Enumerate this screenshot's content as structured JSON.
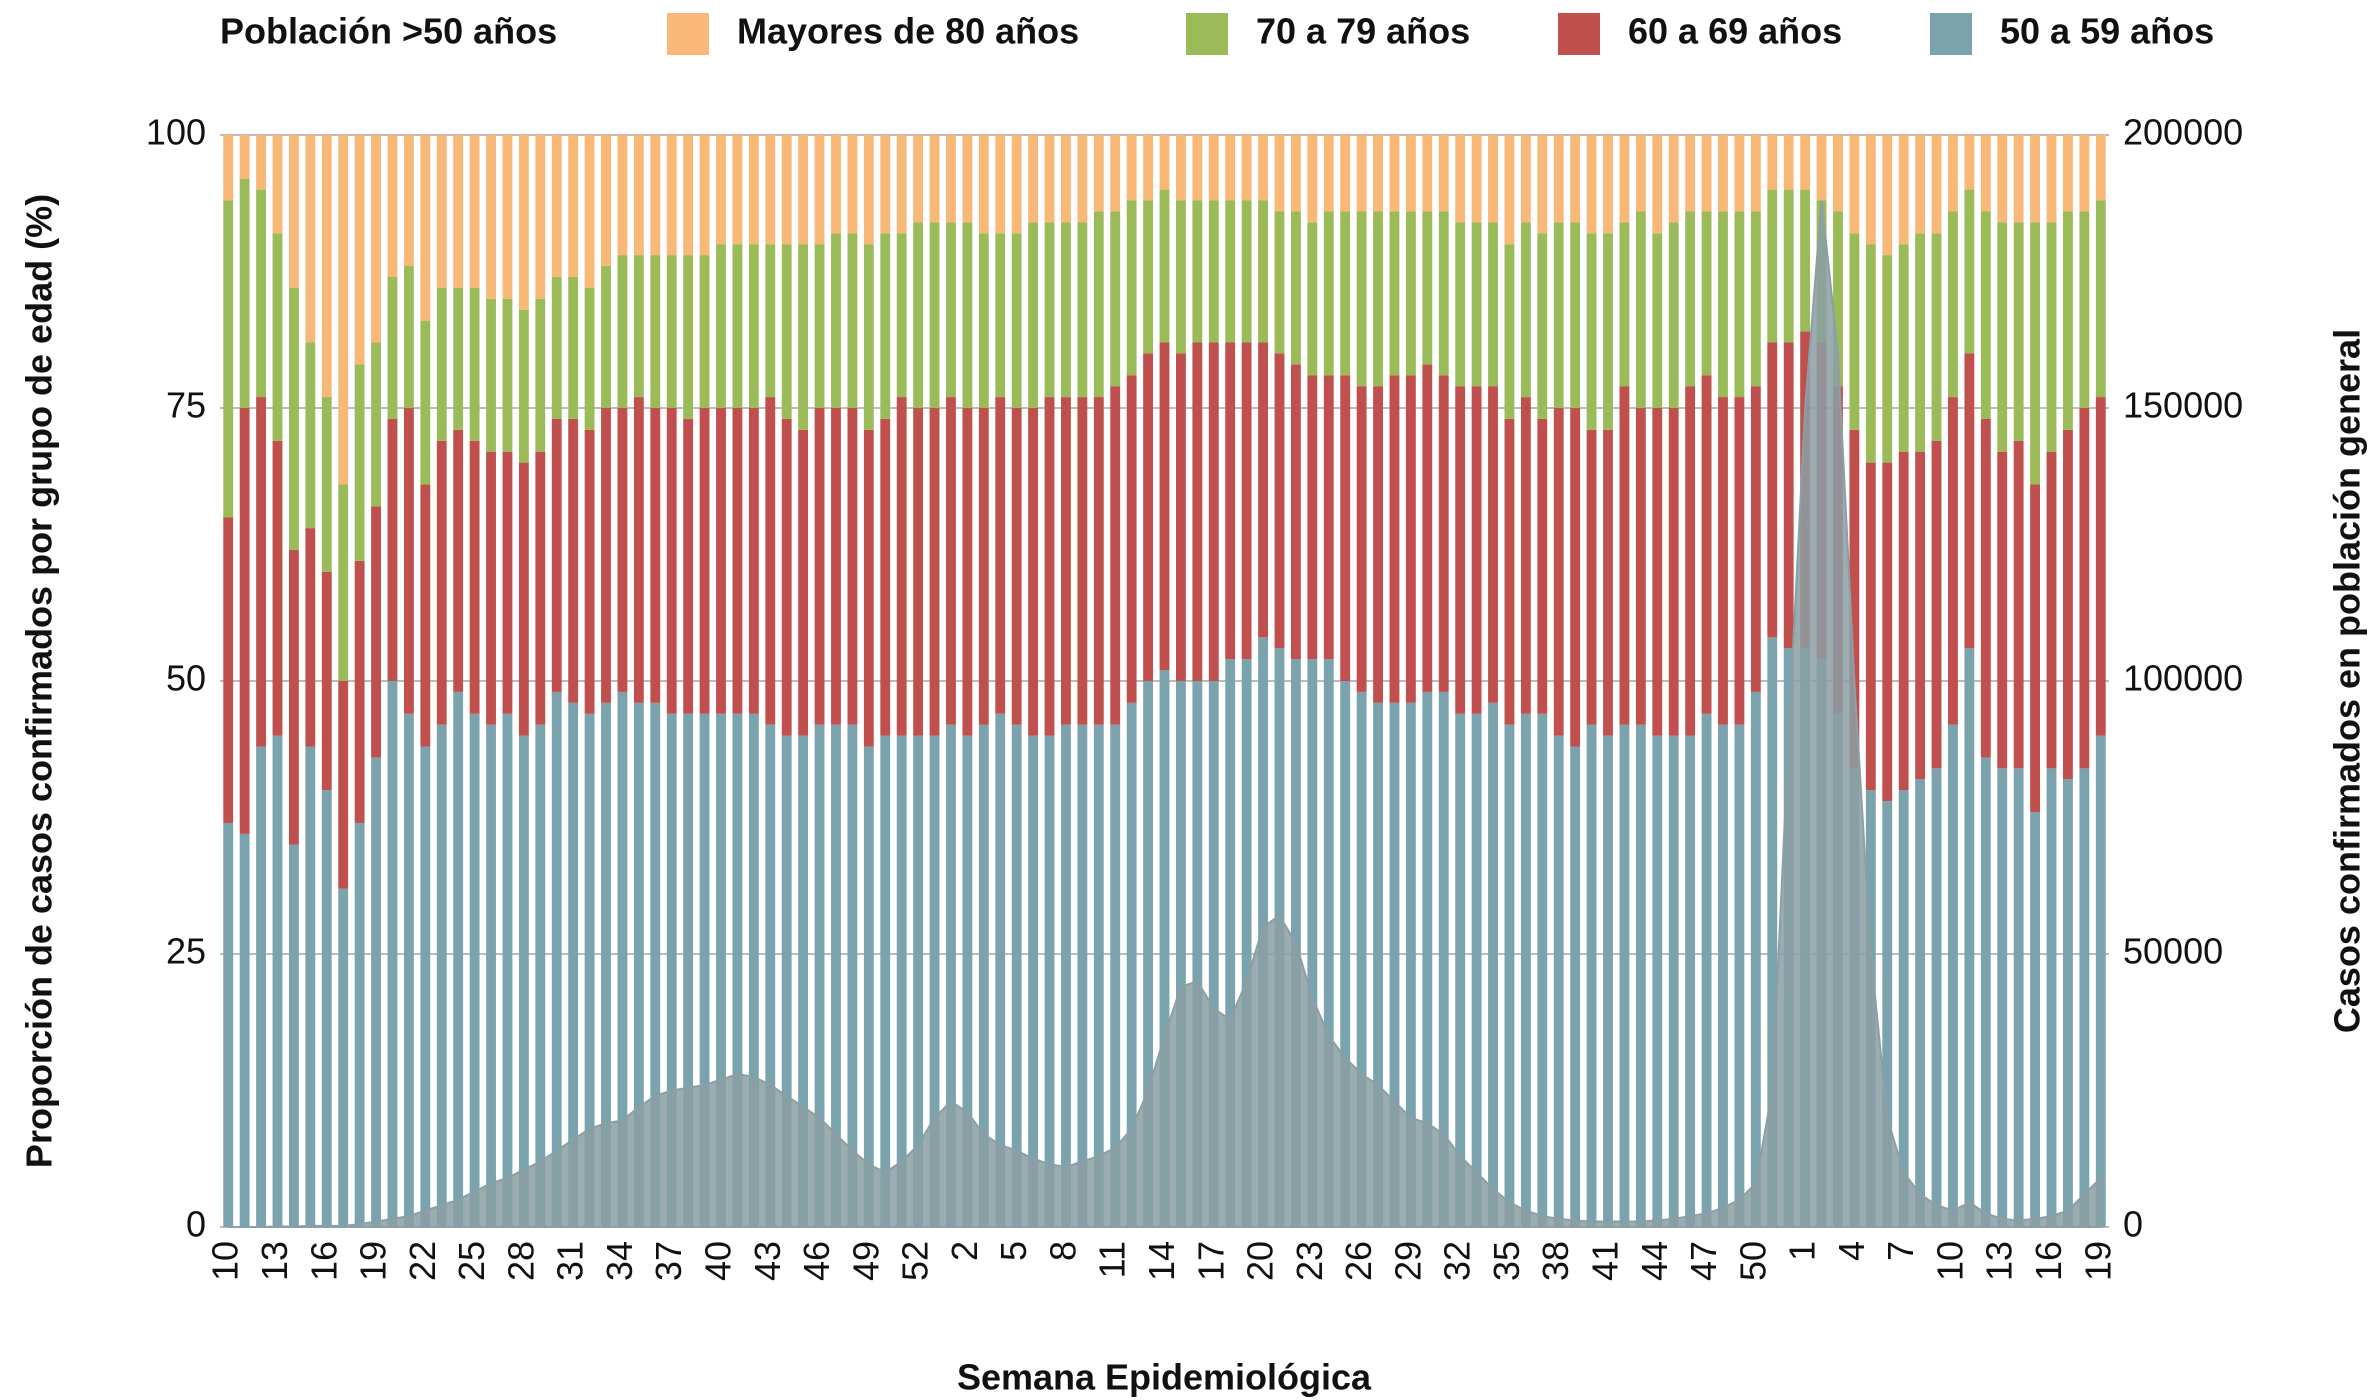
{
  "chart_data": {
    "type": "stacked_bar",
    "legend_title": "Población >50 años",
    "xlabel": "Semana Epidemiológica",
    "ylabel": "Proporción de casos confirmados por grupo de edad (%)",
    "y2label": "Casos confirmados en población general",
    "ylim": [
      0,
      100
    ],
    "yticks": [
      0,
      25,
      50,
      75,
      100
    ],
    "y2lim": [
      0,
      200000
    ],
    "y2ticks": [
      0,
      50000,
      100000,
      150000,
      200000
    ],
    "grid": true,
    "legend_position": "top",
    "categories": [
      "10",
      null,
      null,
      "13",
      null,
      null,
      "16",
      null,
      null,
      "19",
      null,
      null,
      "22",
      null,
      null,
      "25",
      null,
      null,
      "28",
      null,
      null,
      "31",
      null,
      null,
      "34",
      null,
      null,
      "37",
      null,
      null,
      "40",
      null,
      null,
      "43",
      null,
      null,
      "46",
      null,
      null,
      "49",
      null,
      null,
      "52",
      null,
      null,
      "2",
      null,
      null,
      "5",
      null,
      null,
      "8",
      null,
      null,
      "11",
      null,
      null,
      "14",
      null,
      null,
      "17",
      null,
      null,
      "20",
      null,
      null,
      "23",
      null,
      null,
      "26",
      null,
      null,
      "29",
      null,
      null,
      "32",
      null,
      null,
      "35",
      null,
      null,
      "38",
      null,
      null,
      "41",
      null,
      null,
      "44",
      null,
      null,
      "47",
      null,
      null,
      "50",
      null,
      null,
      "1",
      null,
      null,
      "4",
      null,
      null,
      "7",
      null,
      null,
      "10",
      null,
      null,
      "13",
      null,
      null,
      "16",
      null,
      null,
      "19"
    ],
    "series": [
      {
        "name": "50 a 59 años",
        "color": "#7ba3ad",
        "values": [
          37,
          36,
          44,
          45,
          35,
          44,
          40,
          31,
          37,
          43,
          50,
          47,
          44,
          46,
          49,
          47,
          46,
          47,
          45,
          46,
          49,
          48,
          47,
          48,
          49,
          48,
          48,
          47,
          47,
          47,
          47,
          47,
          47,
          46,
          45,
          45,
          46,
          46,
          46,
          44,
          45,
          45,
          45,
          45,
          46,
          45,
          46,
          47,
          46,
          45,
          45,
          46,
          46,
          46,
          46,
          48,
          50,
          51,
          50,
          50,
          50,
          52,
          52,
          54,
          53,
          52,
          52,
          52,
          50,
          49,
          48,
          48,
          48,
          49,
          49,
          47,
          47,
          48,
          46,
          47,
          47,
          45,
          44,
          46,
          45,
          46,
          46,
          45,
          45,
          45,
          47,
          46,
          46,
          49,
          54,
          53,
          53,
          52,
          47,
          42,
          40,
          39,
          40,
          41,
          42,
          46,
          53,
          43,
          42,
          42,
          38,
          42,
          41,
          42,
          45
        ]
      },
      {
        "name": "60 a 69 años",
        "color": "#c0504d",
        "values": [
          28,
          39,
          32,
          27,
          27,
          20,
          20,
          19,
          24,
          23,
          24,
          28,
          24,
          26,
          24,
          25,
          25,
          24,
          25,
          25,
          25,
          26,
          26,
          27,
          26,
          28,
          27,
          28,
          27,
          28,
          28,
          28,
          28,
          30,
          29,
          28,
          29,
          29,
          29,
          29,
          29,
          31,
          30,
          30,
          30,
          30,
          29,
          29,
          29,
          30,
          31,
          30,
          30,
          30,
          31,
          30,
          30,
          30,
          30,
          31,
          31,
          29,
          29,
          27,
          27,
          27,
          26,
          26,
          28,
          28,
          29,
          30,
          30,
          30,
          29,
          30,
          30,
          29,
          28,
          29,
          27,
          30,
          31,
          27,
          28,
          31,
          29,
          30,
          30,
          32,
          31,
          30,
          30,
          28,
          27,
          28,
          29,
          29,
          30,
          31,
          30,
          31,
          31,
          30,
          30,
          30,
          27,
          31,
          29,
          30,
          30,
          29,
          32,
          33,
          31
        ]
      },
      {
        "name": "70 a 79 años",
        "color": "#9bbb59",
        "values": [
          29,
          21,
          19,
          19,
          24,
          17,
          16,
          18,
          18,
          15,
          13,
          13,
          15,
          14,
          13,
          14,
          14,
          14,
          14,
          14,
          13,
          13,
          13,
          13,
          14,
          13,
          14,
          14,
          15,
          14,
          15,
          15,
          15,
          14,
          16,
          17,
          15,
          16,
          16,
          17,
          17,
          15,
          17,
          17,
          16,
          17,
          16,
          15,
          16,
          17,
          16,
          16,
          16,
          17,
          16,
          16,
          14,
          14,
          14,
          13,
          13,
          13,
          13,
          13,
          13,
          14,
          14,
          15,
          15,
          16,
          16,
          15,
          15,
          14,
          15,
          15,
          15,
          15,
          16,
          16,
          17,
          17,
          17,
          18,
          18,
          15,
          18,
          16,
          17,
          16,
          15,
          17,
          17,
          16,
          14,
          14,
          13,
          13,
          16,
          18,
          20,
          19,
          19,
          20,
          19,
          17,
          15,
          19,
          21,
          20,
          24,
          21,
          20,
          18,
          18
        ]
      },
      {
        "name": "Mayores de 80 años",
        "color": "#f8b878",
        "values": [
          6,
          4,
          5,
          9,
          14,
          19,
          24,
          32,
          21,
          19,
          13,
          12,
          17,
          14,
          14,
          14,
          15,
          15,
          16,
          15,
          13,
          13,
          14,
          12,
          11,
          11,
          11,
          11,
          11,
          11,
          10,
          10,
          10,
          10,
          10,
          10,
          10,
          9,
          9,
          10,
          9,
          9,
          8,
          8,
          8,
          8,
          9,
          9,
          9,
          8,
          8,
          8,
          8,
          7,
          7,
          6,
          6,
          5,
          6,
          6,
          6,
          6,
          6,
          6,
          7,
          7,
          8,
          7,
          7,
          7,
          7,
          7,
          7,
          7,
          7,
          8,
          8,
          8,
          10,
          8,
          9,
          8,
          8,
          9,
          9,
          8,
          7,
          9,
          8,
          7,
          7,
          7,
          7,
          7,
          5,
          5,
          5,
          6,
          7,
          9,
          10,
          11,
          10,
          9,
          9,
          7,
          5,
          7,
          8,
          8,
          8,
          8,
          7,
          7,
          6
        ]
      },
      {
        "type": "area",
        "axis": "y2",
        "color": "#8b9fa4",
        "values": [
          0,
          0,
          0,
          100,
          100,
          200,
          200,
          200,
          500,
          1000,
          1500,
          2000,
          3000,
          4000,
          5000,
          6500,
          8000,
          9000,
          10500,
          12000,
          14000,
          16000,
          18000,
          19000,
          19500,
          22000,
          24000,
          25000,
          25500,
          26000,
          27000,
          28000,
          27500,
          26000,
          24000,
          22000,
          20000,
          17000,
          14000,
          11500,
          10000,
          12000,
          15000,
          20000,
          23000,
          21000,
          17000,
          15000,
          14000,
          12500,
          11500,
          11000,
          12000,
          13000,
          14500,
          18000,
          25000,
          35000,
          44000,
          45000,
          40000,
          38000,
          45000,
          55000,
          57000,
          52000,
          42000,
          35000,
          31000,
          28000,
          26000,
          23000,
          20000,
          19000,
          17000,
          13000,
          10000,
          7000,
          4500,
          3000,
          2000,
          1500,
          1200,
          1000,
          1000,
          1000,
          1000,
          1200,
          1500,
          2000,
          2500,
          3500,
          5000,
          8000,
          25000,
          90000,
          150000,
          188000,
          160000,
          100000,
          50000,
          20000,
          10000,
          6000,
          4000,
          3000,
          4500,
          2500,
          1500,
          1200,
          1500,
          2000,
          3000,
          6000,
          9000
        ]
      }
    ]
  }
}
